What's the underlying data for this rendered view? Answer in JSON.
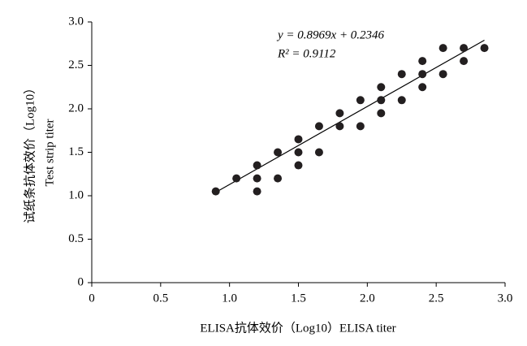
{
  "chart_data": {
    "type": "scatter",
    "x_label": "ELISA抗体效价（Log10）ELISA titer",
    "y_label": [
      "试纸条抗体效价（Log10）",
      "Test strip titer"
    ],
    "annotations": [
      "y = 0.8969x + 0.2346",
      "R² = 0.9112"
    ],
    "color": "#231f20",
    "x": [
      0.9,
      1.05,
      1.2,
      1.2,
      1.2,
      1.35,
      1.35,
      1.5,
      1.5,
      1.5,
      1.65,
      1.65,
      1.8,
      1.8,
      1.95,
      1.95,
      2.1,
      2.1,
      2.1,
      2.25,
      2.25,
      2.4,
      2.4,
      2.4,
      2.55,
      2.55,
      2.7,
      2.7,
      2.85
    ],
    "values": [
      1.05,
      1.2,
      1.35,
      1.2,
      1.05,
      1.5,
      1.2,
      1.65,
      1.5,
      1.35,
      1.8,
      1.5,
      1.95,
      1.8,
      2.1,
      1.8,
      2.25,
      2.1,
      1.95,
      2.4,
      2.1,
      2.55,
      2.4,
      2.25,
      2.7,
      2.4,
      2.7,
      2.55,
      2.7
    ],
    "fit_line": {
      "x": [
        0.9,
        2.85
      ],
      "values": [
        1.04,
        2.79
      ]
    },
    "xlim": [
      0,
      3.0
    ],
    "ylim": [
      0,
      3.0
    ],
    "xticks": [
      0,
      0.5,
      {
        "value": 1.0,
        "label": "1.0"
      },
      1.5,
      {
        "value": 2.0,
        "label": "2.0"
      },
      2.5,
      {
        "value": 3.0,
        "label": "3.0"
      }
    ],
    "yticks": [
      0,
      0.5,
      {
        "value": 1.0,
        "label": "1.0"
      },
      1.5,
      {
        "value": 2.0,
        "label": "2.0"
      },
      2.5,
      {
        "value": 3.0,
        "label": "3.0"
      }
    ]
  }
}
